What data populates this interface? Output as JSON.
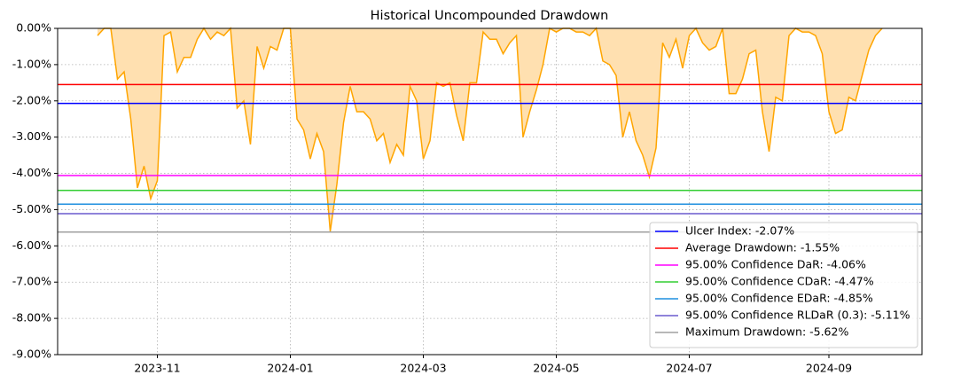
{
  "chart_data": {
    "type": "drawdown",
    "title": "Historical Uncompounded Drawdown",
    "categories": [
      null,
      null,
      null,
      null,
      null,
      null,
      null,
      null,
      null,
      null,
      null,
      null,
      null,
      null,
      null,
      "2023-11",
      null,
      null,
      null,
      null,
      null,
      null,
      null,
      null,
      null,
      null,
      null,
      null,
      null,
      null,
      null,
      null,
      null,
      null,
      null,
      "2024-01",
      null,
      null,
      null,
      null,
      null,
      null,
      null,
      null,
      null,
      null,
      null,
      null,
      null,
      null,
      null,
      null,
      null,
      null,
      null,
      "2024-03",
      null,
      null,
      null,
      null,
      null,
      null,
      null,
      null,
      null,
      null,
      null,
      null,
      null,
      null,
      null,
      null,
      null,
      null,
      null,
      "2024-05",
      null,
      null,
      null,
      null,
      null,
      null,
      null,
      null,
      null,
      null,
      null,
      null,
      null,
      null,
      null,
      null,
      null,
      null,
      null,
      "2024-07",
      null,
      null,
      null,
      null,
      null,
      null,
      null,
      null,
      null,
      null,
      null,
      null,
      null,
      null,
      null,
      null,
      null,
      null,
      null,
      null,
      "2024-09",
      null,
      null,
      null,
      null,
      null,
      null,
      null,
      null,
      null,
      null,
      null,
      null,
      null,
      null
    ],
    "values": [
      null,
      null,
      null,
      null,
      null,
      null,
      -0.2,
      0,
      0,
      -1.4,
      -1.2,
      -2.5,
      -4.4,
      -3.8,
      -4.7,
      -4.2,
      -0.2,
      -0.1,
      -1.2,
      -0.8,
      -0.8,
      -0.3,
      0,
      -0.3,
      -0.1,
      -0.2,
      0,
      -2.2,
      -2.0,
      -3.2,
      -0.5,
      -1.1,
      -0.5,
      -0.6,
      0,
      0,
      -2.5,
      -2.8,
      -3.6,
      -2.9,
      -3.4,
      -5.6,
      -4.3,
      -2.6,
      -1.6,
      -2.3,
      -2.3,
      -2.5,
      -3.1,
      -2.9,
      -3.7,
      -3.2,
      -3.5,
      -1.6,
      -2.0,
      -3.6,
      -3.1,
      -1.5,
      -1.6,
      -1.5,
      -2.4,
      -3.1,
      -1.5,
      -1.5,
      -0.1,
      -0.3,
      -0.3,
      -0.7,
      -0.4,
      -0.2,
      -3.0,
      -2.3,
      -1.7,
      -1.0,
      0,
      -0.1,
      0,
      0,
      -0.1,
      -0.1,
      -0.2,
      0,
      -0.9,
      -1.0,
      -1.3,
      -3.0,
      -2.3,
      -3.1,
      -3.5,
      -4.1,
      -3.3,
      -0.4,
      -0.8,
      -0.3,
      -1.1,
      -0.2,
      0,
      -0.4,
      -0.6,
      -0.5,
      0,
      -1.8,
      -1.8,
      -1.4,
      -0.7,
      -0.6,
      -2.3,
      -3.4,
      -1.9,
      -2.0,
      -0.2,
      0,
      -0.1,
      -0.1,
      -0.2,
      -0.7,
      -2.3,
      -2.9,
      -2.8,
      -1.9,
      -2.0,
      -1.3,
      -0.6,
      -0.2,
      0,
      null,
      null,
      null,
      null,
      null,
      null
    ],
    "color": "#ffa500",
    "fill": "#ffe0b0",
    "hlines": [
      {
        "name": "Ulcer Index: -2.07%",
        "value": -2.07,
        "color": "#0000ff"
      },
      {
        "name": "Average Drawdown: -1.55%",
        "value": -1.55,
        "color": "#ff0000"
      },
      {
        "name": "95.00% Confidence DaR: -4.06%",
        "value": -4.06,
        "color": "#ff00ff"
      },
      {
        "name": "95.00% Confidence CDaR: -4.47%",
        "value": -4.47,
        "color": "#32cd32"
      },
      {
        "name": "95.00% Confidence EDaR: -4.85%",
        "value": -4.85,
        "color": "#1f8fdf"
      },
      {
        "name": "95.00% Confidence RLDaR (0.3): -5.11%",
        "value": -5.11,
        "color": "#6a5acd"
      },
      {
        "name": "Maximum Drawdown: -5.62%",
        "value": -5.62,
        "color": "#a0a0a0"
      }
    ],
    "ylim": [
      -9,
      0
    ],
    "yticks": [
      {
        "value": 0,
        "label": "0.00%"
      },
      {
        "value": -1,
        "label": "-1.00%"
      },
      {
        "value": -2,
        "label": "-2.00%"
      },
      {
        "value": -3,
        "label": "-3.00%"
      },
      {
        "value": -4,
        "label": "-4.00%"
      },
      {
        "value": -5,
        "label": "-5.00%"
      },
      {
        "value": -6,
        "label": "-6.00%"
      },
      {
        "value": -7,
        "label": "-7.00%"
      },
      {
        "value": -8,
        "label": "-8.00%"
      },
      {
        "value": -9,
        "label": "-9.00%"
      }
    ],
    "grid": true,
    "legend": "lower right"
  }
}
